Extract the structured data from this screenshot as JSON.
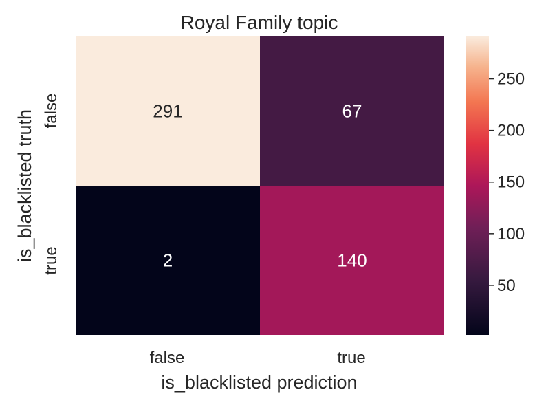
{
  "chart_data": {
    "type": "heatmap",
    "title": "Royal Family topic",
    "xlabel": "is_blacklisted prediction",
    "ylabel": "is_blacklisted truth",
    "x_categories": [
      "false",
      "true"
    ],
    "y_categories": [
      "false",
      "true"
    ],
    "values": [
      [
        291,
        67
      ],
      [
        2,
        140
      ]
    ],
    "annotations": [
      [
        "291",
        "67"
      ],
      [
        "2",
        "140"
      ]
    ],
    "colormap": "rocket",
    "colorbar": {
      "range": [
        2,
        291
      ],
      "ticks": [
        50,
        100,
        150,
        200,
        250
      ],
      "tick_labels": [
        "50",
        "100",
        "150",
        "200",
        "250"
      ]
    },
    "grid": false,
    "legend": "colorbar-right"
  }
}
